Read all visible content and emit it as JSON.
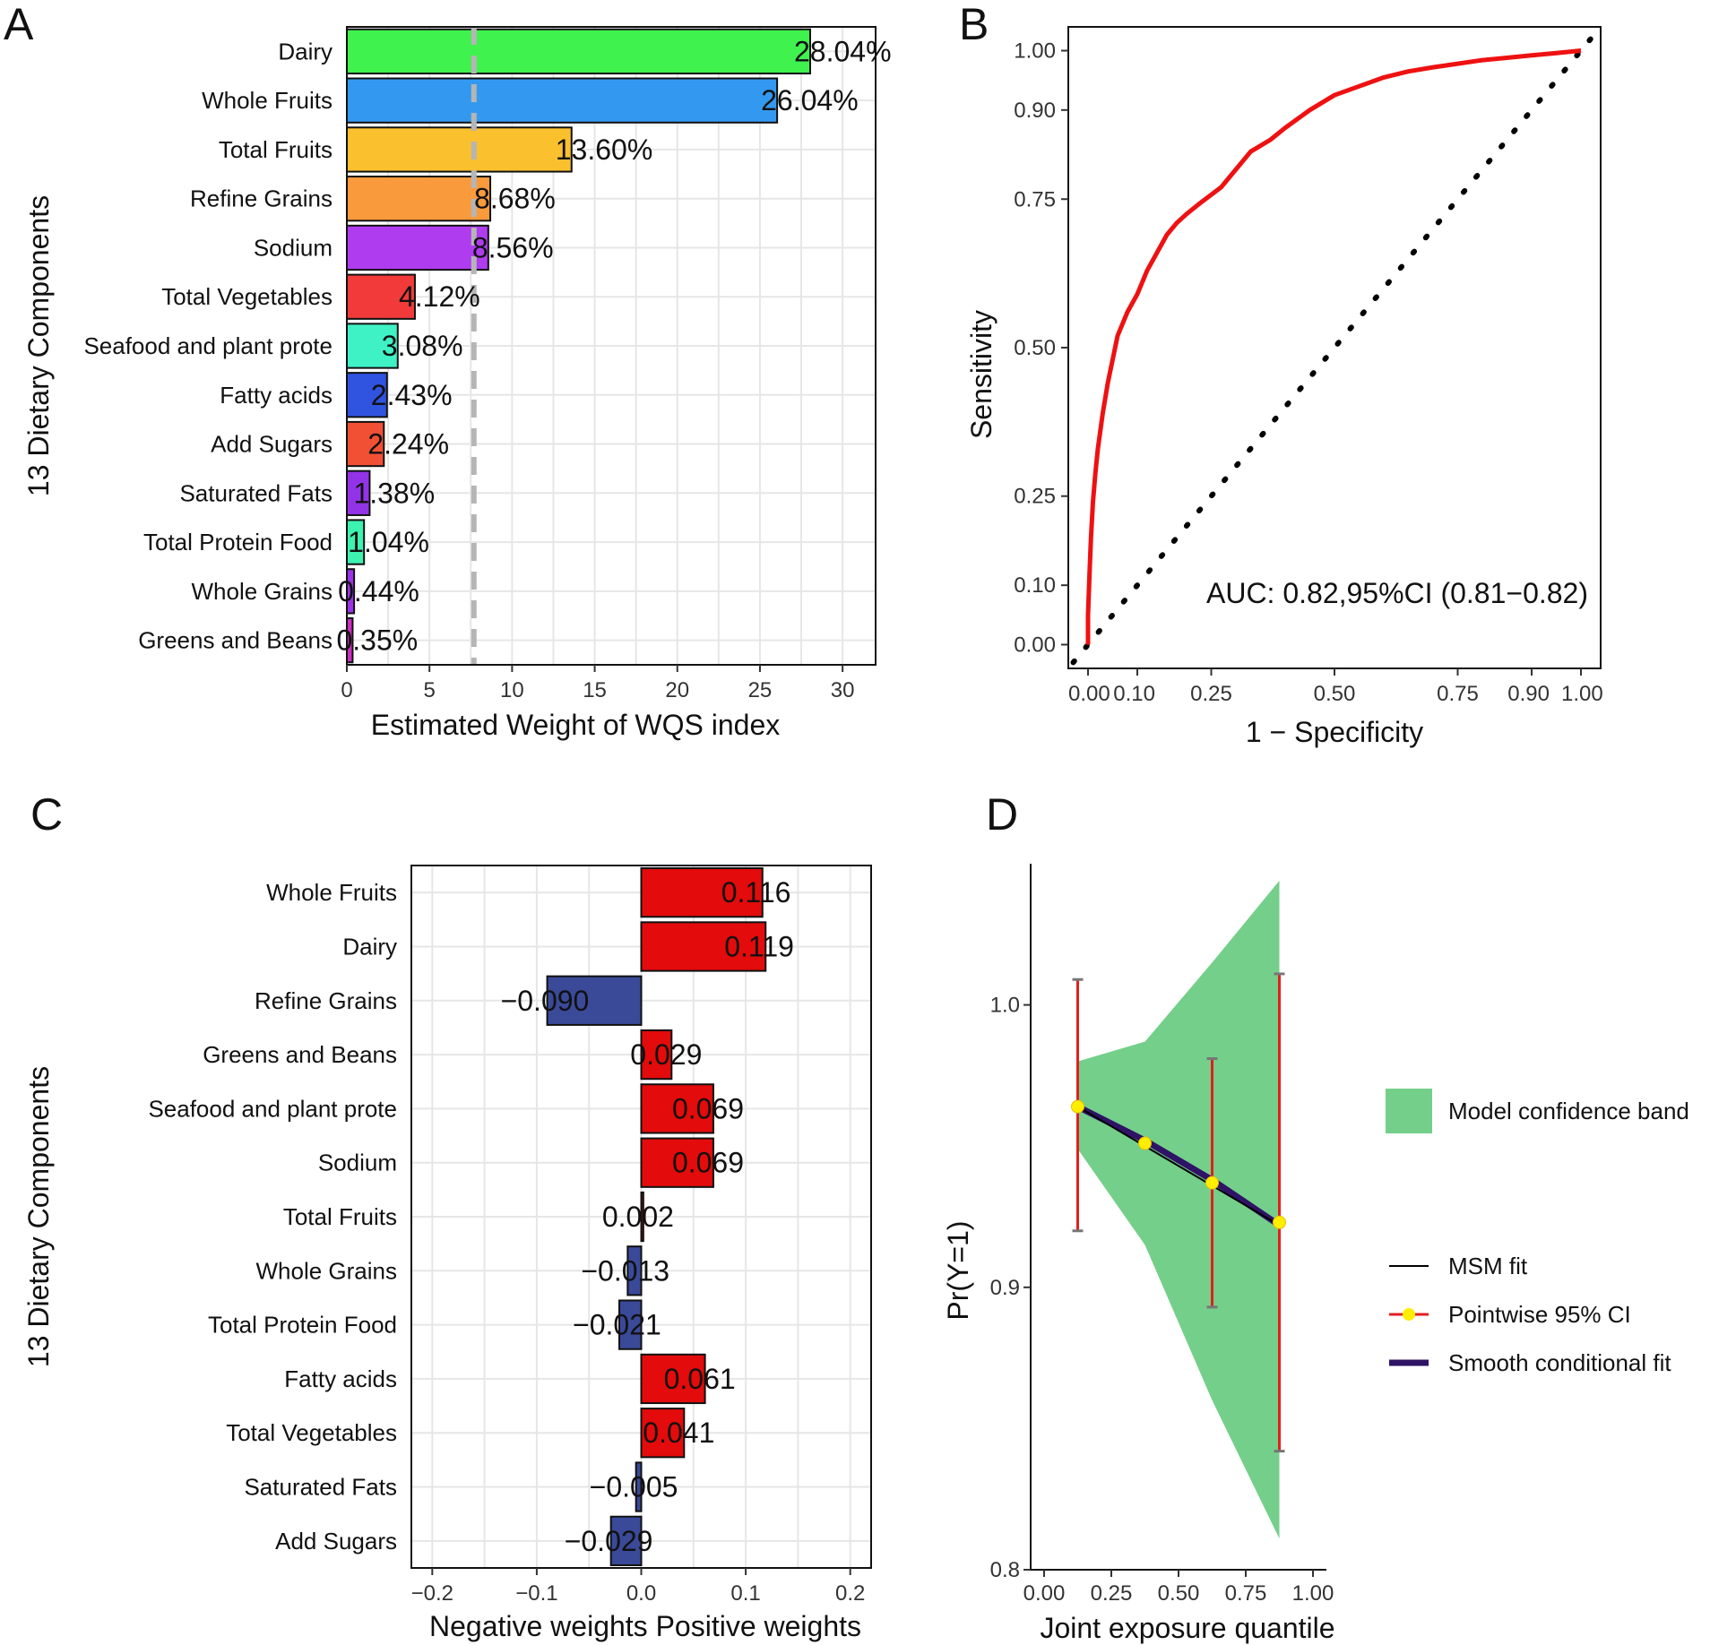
{
  "panels": {
    "A": {
      "letter": "A"
    },
    "B": {
      "letter": "B"
    },
    "C": {
      "letter": "C"
    },
    "D": {
      "letter": "D"
    }
  },
  "chart_data": [
    {
      "panel": "A",
      "type": "bar",
      "orientation": "horizontal",
      "title": "",
      "xlabel": "Estimated Weight of WQS index",
      "ylabel": "13 Dietary Components",
      "xlim": [
        0,
        32
      ],
      "xticks": [
        0,
        5,
        10,
        15,
        20,
        25,
        30
      ],
      "reference_line": 7.69,
      "categories": [
        "Dairy",
        "Whole Fruits",
        "Total Fruits",
        "Refine Grains",
        "Sodium",
        "Total Vegetables",
        "Seafood and plant prote",
        "Fatty acids",
        "Add Sugars",
        "Saturated Fats",
        "Total Protein Food",
        "Whole Grains",
        "Greens and Beans"
      ],
      "values": [
        28.04,
        26.04,
        13.6,
        8.68,
        8.56,
        4.12,
        3.08,
        2.43,
        2.24,
        1.38,
        1.04,
        0.44,
        0.35
      ],
      "labels": [
        "28.04%",
        "26.04%",
        "13.60%",
        "8.68%",
        "8.56%",
        "4.12%",
        "3.08%",
        "2.43%",
        "2.24%",
        "1.38%",
        "1.04%",
        "0.44%",
        "0.35%"
      ],
      "colors": [
        "#3ff24e",
        "#3399f0",
        "#fbc02d",
        "#f99a3c",
        "#b03cf0",
        "#f23a3a",
        "#3ef2c6",
        "#3053e0",
        "#f25035",
        "#9233e8",
        "#3ef2b0",
        "#9b33e6",
        "#cc2ec2"
      ]
    },
    {
      "panel": "B",
      "type": "line",
      "title": "",
      "xlabel": "1 − Specificity",
      "ylabel": "Sensitivity",
      "xlim": [
        -0.04,
        1.04
      ],
      "ylim": [
        -0.04,
        1.04
      ],
      "xticks": [
        0.0,
        0.1,
        0.25,
        0.5,
        0.75,
        0.9,
        1.0
      ],
      "xtick_labels": [
        "0.00",
        "0.10",
        "0.25",
        "0.50",
        "0.75",
        "0.90",
        "1.00"
      ],
      "yticks": [
        0.0,
        0.1,
        0.25,
        0.5,
        0.75,
        0.9,
        1.0
      ],
      "ytick_labels": [
        "0.00",
        "0.10",
        "0.25",
        "0.50",
        "0.75",
        "0.90",
        "1.00"
      ],
      "annotation": "AUC: 0.82,95%CI (0.81−0.82)",
      "series": [
        {
          "name": "ROC",
          "color": "#ee1111",
          "x": [
            0.0,
            0.0,
            0.003,
            0.006,
            0.01,
            0.015,
            0.02,
            0.03,
            0.04,
            0.05,
            0.06,
            0.08,
            0.1,
            0.12,
            0.14,
            0.16,
            0.18,
            0.2,
            0.23,
            0.27,
            0.3,
            0.33,
            0.37,
            0.4,
            0.45,
            0.5,
            0.55,
            0.6,
            0.65,
            0.7,
            0.75,
            0.8,
            0.85,
            0.9,
            0.95,
            1.0
          ],
          "y": [
            0.0,
            0.05,
            0.12,
            0.18,
            0.24,
            0.29,
            0.33,
            0.39,
            0.44,
            0.48,
            0.52,
            0.56,
            0.59,
            0.63,
            0.66,
            0.69,
            0.71,
            0.725,
            0.745,
            0.77,
            0.8,
            0.83,
            0.85,
            0.87,
            0.9,
            0.925,
            0.94,
            0.955,
            0.965,
            0.972,
            0.978,
            0.984,
            0.988,
            0.992,
            0.996,
            1.0
          ]
        },
        {
          "name": "Reference",
          "color": "#000000",
          "style": "dotted",
          "x": [
            -0.03,
            1.02
          ],
          "y": [
            -0.03,
            1.02
          ]
        }
      ]
    },
    {
      "panel": "C",
      "type": "bar",
      "orientation": "horizontal",
      "title": "",
      "xlabel": "Negative  weights                 Positive weights",
      "ylabel": "13 Dietary Components",
      "xlim": [
        -0.22,
        0.22
      ],
      "xticks": [
        -0.2,
        -0.1,
        0.0,
        0.1,
        0.2
      ],
      "xtick_labels": [
        "−0.2",
        "−0.1",
        "0.0",
        "0.1",
        "0.2"
      ],
      "categories": [
        "Whole Fruits",
        "Dairy",
        "Refine Grains",
        "Greens and Beans",
        "Seafood and plant prote",
        "Sodium",
        "Total Fruits",
        "Whole Grains",
        "Total Protein Food",
        "Fatty acids",
        "Total Vegetables",
        "Saturated Fats",
        "Add Sugars"
      ],
      "values": [
        0.116,
        0.119,
        -0.09,
        0.029,
        0.069,
        0.069,
        0.002,
        -0.013,
        -0.021,
        0.061,
        0.041,
        -0.005,
        -0.029
      ],
      "labels": [
        "0.116",
        "0.119",
        "−0.090",
        "0.029",
        "0.069",
        "0.069",
        "0.002",
        "−0.013",
        "−0.021",
        "0.061",
        "0.041",
        "−0.005",
        "−0.029"
      ],
      "positive_color": "#e30b0b",
      "negative_color": "#3a4a99"
    },
    {
      "panel": "D",
      "type": "line",
      "title": "",
      "xlabel": "Joint exposure quantile",
      "ylabel": "Pr(Y=1)",
      "xlim": [
        -0.05,
        1.05
      ],
      "ylim": [
        0.8,
        1.05
      ],
      "xticks": [
        0.0,
        0.25,
        0.5,
        0.75,
        1.0
      ],
      "xtick_labels": [
        "0.00",
        "0.25",
        "0.50",
        "0.75",
        "1.00"
      ],
      "yticks": [
        0.8,
        0.9,
        1.0
      ],
      "ytick_labels": [
        "0.8",
        "0.9",
        "1.0"
      ],
      "band": {
        "name": "Model confidence band",
        "color": "#74cf8a",
        "x": [
          0.125,
          0.375,
          0.625,
          0.875
        ],
        "lower": [
          0.949,
          0.915,
          0.86,
          0.811
        ],
        "upper": [
          0.98,
          0.987,
          1.015,
          1.044
        ]
      },
      "points": {
        "name": "Pointwise 95% CI",
        "color": "#ffee00",
        "errcolor": "#e02020",
        "x": [
          0.125,
          0.375,
          0.625,
          0.875
        ],
        "y": [
          0.964,
          0.951,
          0.937,
          0.923
        ],
        "lower": [
          0.92,
          null,
          0.893,
          0.842
        ],
        "upper": [
          1.009,
          null,
          0.981,
          1.011
        ]
      },
      "series": [
        {
          "name": "MSM fit",
          "color": "#000000",
          "x": [
            0.125,
            0.875
          ],
          "y": [
            0.964,
            0.922
          ]
        },
        {
          "name": "Smooth conditional fit",
          "color": "#2e1366",
          "x": [
            0.125,
            0.375,
            0.625,
            0.875
          ],
          "y": [
            0.964,
            0.952,
            0.938,
            0.922
          ]
        }
      ],
      "legend": [
        "Model confidence band",
        "MSM fit",
        "Pointwise 95% CI",
        "Smooth conditional fit"
      ]
    }
  ]
}
